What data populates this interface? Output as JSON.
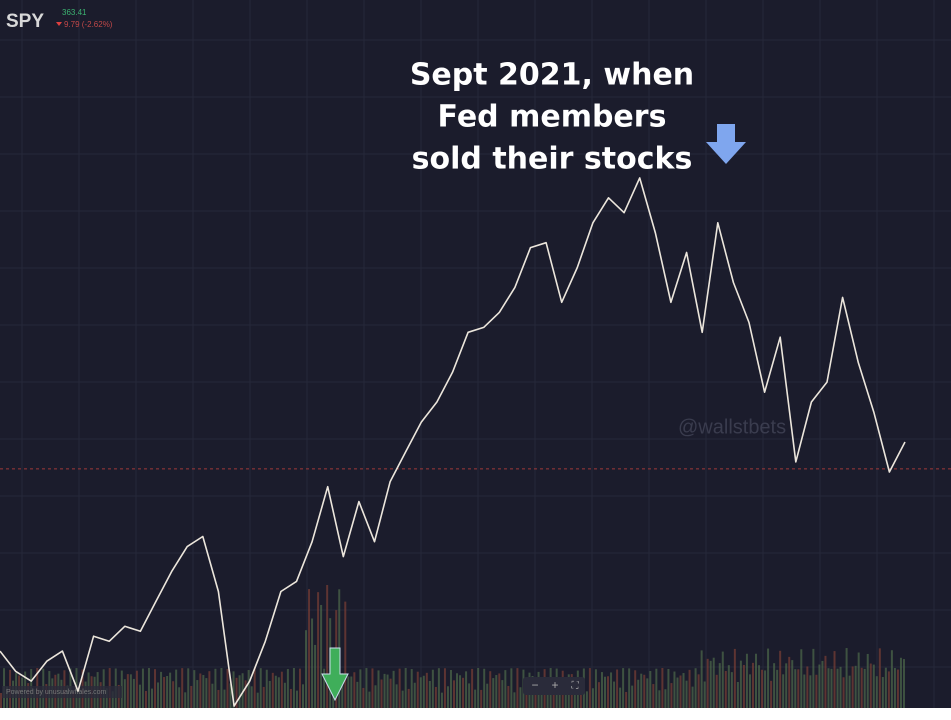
{
  "header": {
    "symbol": "SPY",
    "price": 363.41,
    "change": "9.79 (-2.62%)"
  },
  "chart_data": {
    "type": "line",
    "color": "#ece6dc",
    "values": [
      292.8,
      285.0,
      281.2,
      288.9,
      292.8,
      277.3,
      298.6,
      296.6,
      302.4,
      300.5,
      312.1,
      323.6,
      333.3,
      337.2,
      315.9,
      271.5,
      281.2,
      296.6,
      315.9,
      319.8,
      335.2,
      356.5,
      329.4,
      350.7,
      335.2,
      358.4,
      370.0,
      381.5,
      389.3,
      400.8,
      416.3,
      418.2,
      424.0,
      433.7,
      449.1,
      451.0,
      427.9,
      441.4,
      458.7,
      468.4,
      462.6,
      476.1,
      454.9,
      427.9,
      447.2,
      416.3,
      458.7,
      435.6,
      420.1,
      393.1,
      414.4,
      366.1,
      389.3,
      397.0,
      429.8,
      404.7,
      385.4,
      362.2,
      373.8
    ],
    "ylim": [
      270,
      545
    ],
    "annotation": [
      "Sept 2021, when",
      "Fed members",
      "sold their stocks"
    ]
  },
  "watermark": "@wallstbets",
  "footer": {
    "credit": "Powered by unusualwhales.com",
    "controls": [
      "−",
      "+",
      "⛶"
    ]
  }
}
